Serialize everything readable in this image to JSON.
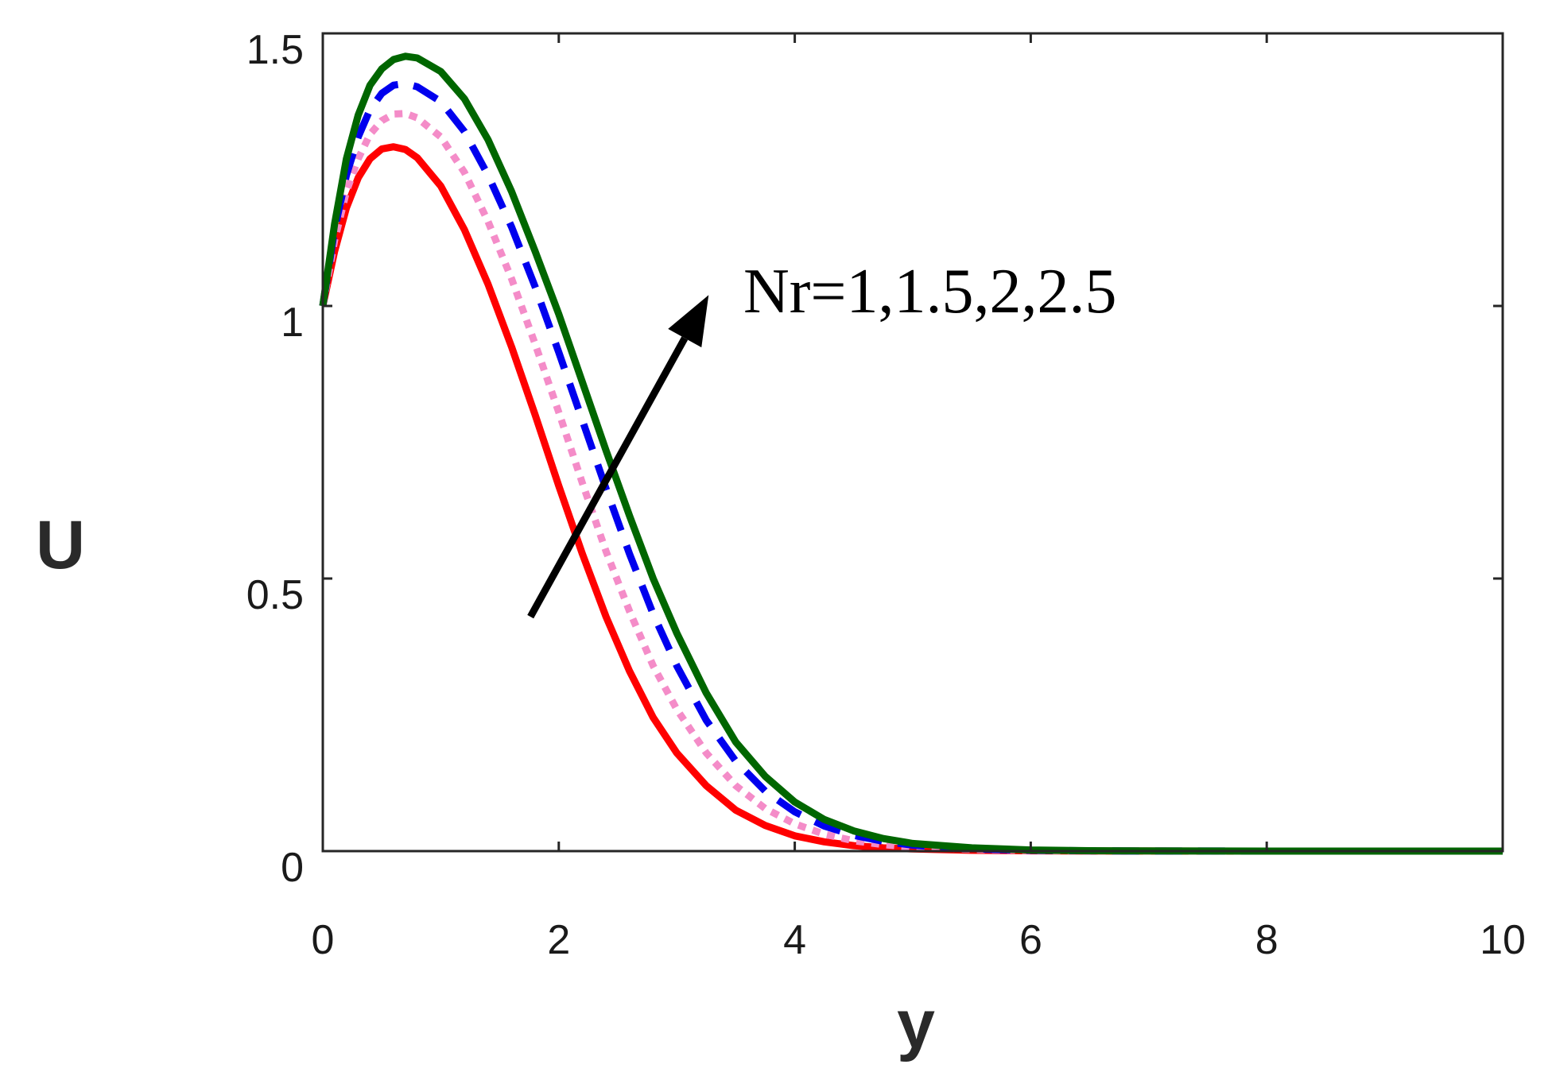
{
  "chart_data": {
    "type": "line",
    "title": "",
    "xlabel": "y",
    "ylabel": "U",
    "xlim": [
      0,
      10
    ],
    "ylim": [
      0,
      1.5
    ],
    "xticks": [
      0,
      2,
      4,
      6,
      8,
      10
    ],
    "xtick_labels": [
      "0",
      "2",
      "4",
      "6",
      "8",
      "10"
    ],
    "yticks": [
      0,
      0.5,
      1,
      1.5
    ],
    "ytick_labels": [
      "0",
      "0.5",
      "1",
      "1.5"
    ],
    "grid": false,
    "legend": "none",
    "annotation": "Nr=1,1.5,2,2.5",
    "arrow": {
      "from": [
        1.76,
        0.43
      ],
      "to": [
        3.27,
        1.02
      ],
      "color": "#000000"
    },
    "series": [
      {
        "color": "#ff0000",
        "dash": "solid",
        "x": [
          0,
          0.1,
          0.2,
          0.3,
          0.4,
          0.5,
          0.6,
          0.7,
          0.8,
          1,
          1.2,
          1.4,
          1.6,
          1.8,
          2,
          2.2,
          2.4,
          2.6,
          2.8,
          3,
          3.25,
          3.5,
          3.75,
          4,
          4.25,
          4.5,
          4.75,
          5,
          5.5,
          6,
          6.5,
          7,
          7.5,
          8,
          8.5,
          9,
          9.5,
          10
        ],
        "values": [
          1.0,
          1.1,
          1.18,
          1.235,
          1.27,
          1.288,
          1.292,
          1.287,
          1.272,
          1.22,
          1.14,
          1.04,
          0.925,
          0.8,
          0.67,
          0.545,
          0.43,
          0.33,
          0.245,
          0.18,
          0.12,
          0.075,
          0.047,
          0.028,
          0.017,
          0.01,
          0.006,
          0.004,
          0.0015,
          0.0006,
          0.0002,
          0.0001,
          0,
          0,
          0,
          0,
          0,
          0
        ]
      },
      {
        "color": "#f48cc8",
        "dash": "dotted",
        "x": [
          0,
          0.1,
          0.2,
          0.3,
          0.4,
          0.5,
          0.6,
          0.7,
          0.8,
          1,
          1.2,
          1.4,
          1.6,
          1.8,
          2,
          2.2,
          2.4,
          2.6,
          2.8,
          3,
          3.25,
          3.5,
          3.75,
          4,
          4.25,
          4.5,
          4.75,
          5,
          5.5,
          6,
          6.5,
          7,
          7.5,
          8,
          8.5,
          9,
          9.5,
          10
        ],
        "values": [
          1.0,
          1.12,
          1.21,
          1.27,
          1.315,
          1.34,
          1.352,
          1.353,
          1.345,
          1.31,
          1.245,
          1.155,
          1.05,
          0.93,
          0.805,
          0.675,
          0.55,
          0.44,
          0.34,
          0.26,
          0.18,
          0.12,
          0.078,
          0.05,
          0.031,
          0.019,
          0.012,
          0.007,
          0.003,
          0.001,
          0.0004,
          0.0002,
          0,
          0,
          0,
          0,
          0,
          0
        ]
      },
      {
        "color": "#0000ee",
        "dash": "dashed",
        "x": [
          0,
          0.1,
          0.2,
          0.3,
          0.4,
          0.5,
          0.6,
          0.7,
          0.8,
          1,
          1.2,
          1.4,
          1.6,
          1.8,
          2,
          2.2,
          2.4,
          2.6,
          2.8,
          3,
          3.25,
          3.5,
          3.75,
          4,
          4.25,
          4.5,
          4.75,
          5,
          5.5,
          6,
          6.5,
          7,
          7.5,
          8,
          8.5,
          9,
          9.5,
          10
        ],
        "values": [
          1.0,
          1.14,
          1.24,
          1.31,
          1.36,
          1.39,
          1.405,
          1.408,
          1.402,
          1.375,
          1.32,
          1.24,
          1.145,
          1.035,
          0.915,
          0.79,
          0.665,
          0.545,
          0.435,
          0.34,
          0.24,
          0.165,
          0.11,
          0.072,
          0.046,
          0.029,
          0.018,
          0.011,
          0.004,
          0.0015,
          0.0006,
          0.0002,
          0.0001,
          0,
          0,
          0,
          0,
          0
        ]
      },
      {
        "color": "#006600",
        "dash": "solid",
        "x": [
          0,
          0.1,
          0.2,
          0.3,
          0.4,
          0.5,
          0.6,
          0.7,
          0.8,
          1,
          1.2,
          1.4,
          1.6,
          1.8,
          2,
          2.2,
          2.4,
          2.6,
          2.8,
          3,
          3.25,
          3.5,
          3.75,
          4,
          4.25,
          4.5,
          4.75,
          5,
          5.5,
          6,
          6.5,
          7,
          7.5,
          8,
          8.5,
          9,
          9.5,
          10
        ],
        "values": [
          1.0,
          1.15,
          1.27,
          1.35,
          1.405,
          1.435,
          1.452,
          1.458,
          1.455,
          1.43,
          1.38,
          1.305,
          1.21,
          1.1,
          0.985,
          0.86,
          0.735,
          0.615,
          0.5,
          0.4,
          0.29,
          0.2,
          0.137,
          0.09,
          0.058,
          0.037,
          0.023,
          0.014,
          0.006,
          0.002,
          0.0008,
          0.0003,
          0.0001,
          0,
          0,
          0,
          0,
          0
        ]
      }
    ]
  }
}
